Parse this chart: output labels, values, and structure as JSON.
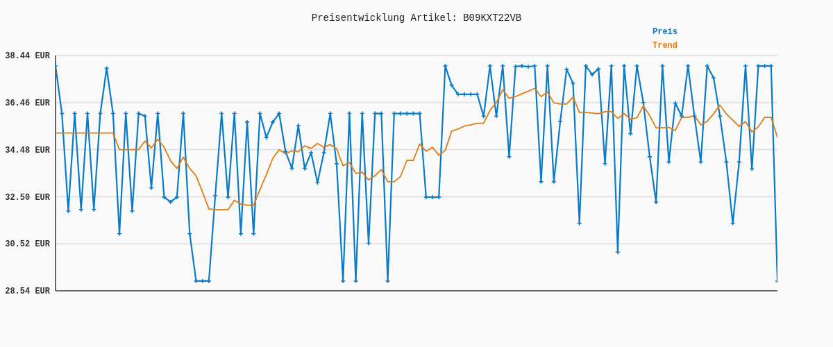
{
  "chart_data": {
    "type": "line",
    "title": "Preisentwicklung Artikel: B09KXT22VB",
    "categories": [
      null,
      null,
      null,
      null,
      null,
      null,
      null,
      null,
      null,
      null,
      null,
      null,
      null,
      null,
      null,
      null,
      null,
      null,
      null,
      null,
      null,
      null,
      null,
      null,
      null,
      null,
      null,
      null,
      null,
      null,
      null,
      null,
      null,
      null,
      null,
      null,
      null,
      null,
      null,
      null,
      null,
      null,
      null,
      null,
      null,
      null,
      null,
      null,
      null,
      null,
      null,
      null,
      null,
      null,
      null,
      null,
      null,
      null,
      null,
      null,
      null,
      null,
      null,
      null,
      null,
      null,
      null,
      null,
      null,
      null,
      null,
      null,
      null,
      null,
      null,
      null,
      null,
      null,
      null,
      null,
      null,
      null,
      null,
      null,
      null,
      null,
      null,
      null,
      null,
      null,
      null,
      null,
      null,
      null,
      null,
      null,
      null,
      null,
      null,
      null,
      null,
      null,
      null,
      null,
      null,
      null,
      null,
      null,
      null,
      null,
      null,
      null,
      null,
      null
    ],
    "series": [
      {
        "name": "Preis",
        "color": "#0a7bc9",
        "marker": "cross",
        "line_style": "solid",
        "values": [
          38.0,
          36.0,
          31.9,
          36.0,
          31.96,
          36.0,
          31.96,
          36.0,
          37.9,
          36.0,
          30.94,
          36.0,
          31.9,
          36.0,
          35.89,
          32.87,
          36.0,
          32.48,
          32.28,
          32.48,
          36.0,
          30.94,
          28.95,
          28.95,
          28.95,
          32.54,
          36.0,
          32.48,
          36.0,
          30.94,
          35.64,
          30.94,
          36.0,
          34.99,
          35.64,
          36.0,
          34.4,
          33.69,
          35.49,
          33.69,
          34.35,
          33.09,
          34.35,
          36.0,
          33.88,
          28.95,
          36.0,
          28.95,
          36.0,
          30.54,
          36.0,
          36.0,
          28.95,
          36.0,
          36.0,
          36.0,
          36.0,
          36.0,
          32.48,
          32.48,
          32.48,
          38.0,
          37.19,
          36.81,
          36.81,
          36.81,
          36.81,
          35.89,
          38.0,
          35.89,
          38.0,
          34.18,
          37.98,
          38.0,
          37.97,
          38.0,
          33.13,
          38.0,
          33.13,
          35.66,
          37.86,
          37.27,
          31.38,
          38.0,
          37.64,
          37.88,
          33.89,
          38.0,
          30.17,
          38.0,
          35.15,
          38.0,
          36.46,
          34.18,
          32.27,
          38.0,
          33.96,
          36.44,
          35.89,
          38.0,
          35.89,
          33.96,
          38.0,
          37.5,
          35.89,
          33.96,
          31.38,
          33.96,
          38.0,
          33.67,
          38.0,
          38.0,
          38.0,
          28.95
        ]
      },
      {
        "name": "Trend",
        "color": "#e07c10",
        "marker": "none",
        "line_style": "solid",
        "values": [
          35.18,
          35.18,
          35.18,
          35.18,
          35.18,
          35.18,
          35.18,
          35.18,
          35.18,
          35.18,
          34.48,
          34.48,
          34.48,
          34.48,
          34.84,
          34.55,
          34.92,
          34.58,
          34.01,
          33.69,
          34.16,
          33.69,
          33.38,
          32.7,
          31.99,
          31.95,
          31.95,
          31.95,
          32.35,
          32.19,
          32.14,
          32.14,
          32.8,
          33.43,
          34.11,
          34.48,
          34.3,
          34.43,
          34.39,
          34.64,
          34.53,
          34.74,
          34.58,
          34.69,
          34.52,
          33.8,
          33.94,
          33.48,
          33.53,
          33.21,
          33.38,
          33.64,
          33.13,
          33.13,
          33.35,
          34.03,
          34.03,
          34.72,
          34.41,
          34.58,
          34.24,
          34.45,
          35.26,
          35.35,
          35.47,
          35.52,
          35.59,
          35.59,
          36.13,
          36.46,
          37.0,
          36.64,
          36.71,
          36.83,
          36.94,
          37.06,
          36.71,
          36.91,
          36.45,
          36.4,
          36.4,
          36.69,
          36.05,
          36.05,
          36.02,
          35.99,
          36.08,
          36.08,
          35.79,
          36.0,
          35.76,
          35.82,
          36.32,
          35.91,
          35.4,
          35.4,
          35.42,
          35.28,
          35.84,
          35.84,
          35.91,
          35.52,
          35.67,
          35.99,
          36.35,
          35.98,
          35.72,
          35.46,
          35.66,
          35.23,
          35.44,
          35.84,
          35.84,
          34.99
        ]
      }
    ],
    "ylim": [
      28.54,
      38.44
    ],
    "yticks": [
      {
        "value": 28.54,
        "label": "28.54 EUR"
      },
      {
        "value": 30.52,
        "label": "30.52 EUR"
      },
      {
        "value": 32.5,
        "label": "32.50 EUR"
      },
      {
        "value": 34.48,
        "label": "34.48 EUR"
      },
      {
        "value": 36.46,
        "label": "36.46 EUR"
      },
      {
        "value": 38.44,
        "label": "38.44 EUR"
      }
    ],
    "grid": "y",
    "legend": "top right",
    "tick_labels": "y"
  }
}
